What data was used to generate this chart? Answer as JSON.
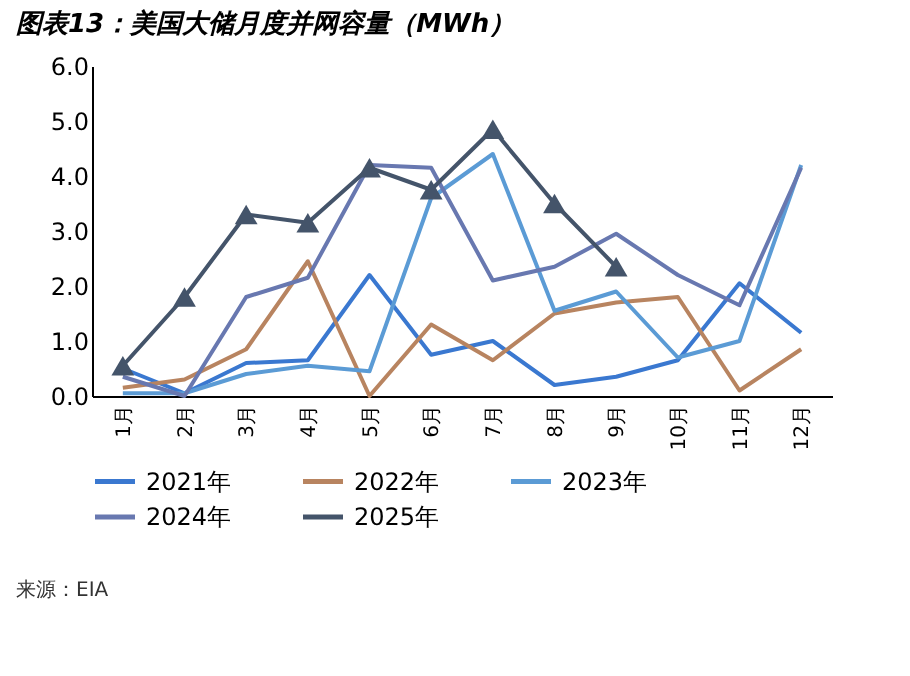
{
  "chart_data": {
    "type": "line",
    "title": "图表13：美国大储月度并网容量（MWh）",
    "categories": [
      "1月",
      "2月",
      "3月",
      "4月",
      "5月",
      "6月",
      "7月",
      "8月",
      "9月",
      "10月",
      "11月",
      "12月"
    ],
    "series": [
      {
        "name": "2021年",
        "color": "#3a78d0",
        "values": [
          0.5,
          0.05,
          0.6,
          0.65,
          2.2,
          0.75,
          1.0,
          0.2,
          0.35,
          0.65,
          2.05,
          1.15
        ]
      },
      {
        "name": "2022年",
        "color": "#b88460",
        "values": [
          0.15,
          0.3,
          0.85,
          2.45,
          0.0,
          1.3,
          0.65,
          1.5,
          1.7,
          1.8,
          0.1,
          0.85
        ]
      },
      {
        "name": "2023年",
        "color": "#5b9bd5",
        "values": [
          0.05,
          0.05,
          0.4,
          0.55,
          0.45,
          3.6,
          4.4,
          1.55,
          1.9,
          0.7,
          1.0,
          4.2
        ]
      },
      {
        "name": "2024年",
        "color": "#6878b0",
        "values": [
          0.35,
          0.0,
          1.8,
          2.15,
          4.2,
          4.15,
          2.1,
          2.35,
          2.95,
          2.2,
          1.65,
          4.15
        ]
      },
      {
        "name": "2025年",
        "color": "#44546a",
        "marker": "triangle",
        "values": [
          0.55,
          1.8,
          3.3,
          3.15,
          4.15,
          3.75,
          4.85,
          3.5,
          2.35,
          null,
          null,
          null
        ]
      }
    ],
    "ylim": [
      0,
      6
    ],
    "yticks": [
      {
        "value": 0,
        "label": "0.0"
      },
      {
        "value": 1,
        "label": "1.0"
      },
      {
        "value": 2,
        "label": "2.0"
      },
      {
        "value": 3,
        "label": "3.0"
      },
      {
        "value": 4,
        "label": "4.0"
      },
      {
        "value": 5,
        "label": "5.0"
      },
      {
        "value": 6,
        "label": "6.0"
      }
    ],
    "grid": false,
    "legend": "bottom",
    "marker": "none",
    "line_style": "solid",
    "annotations": [
      "来源：EIA"
    ]
  }
}
